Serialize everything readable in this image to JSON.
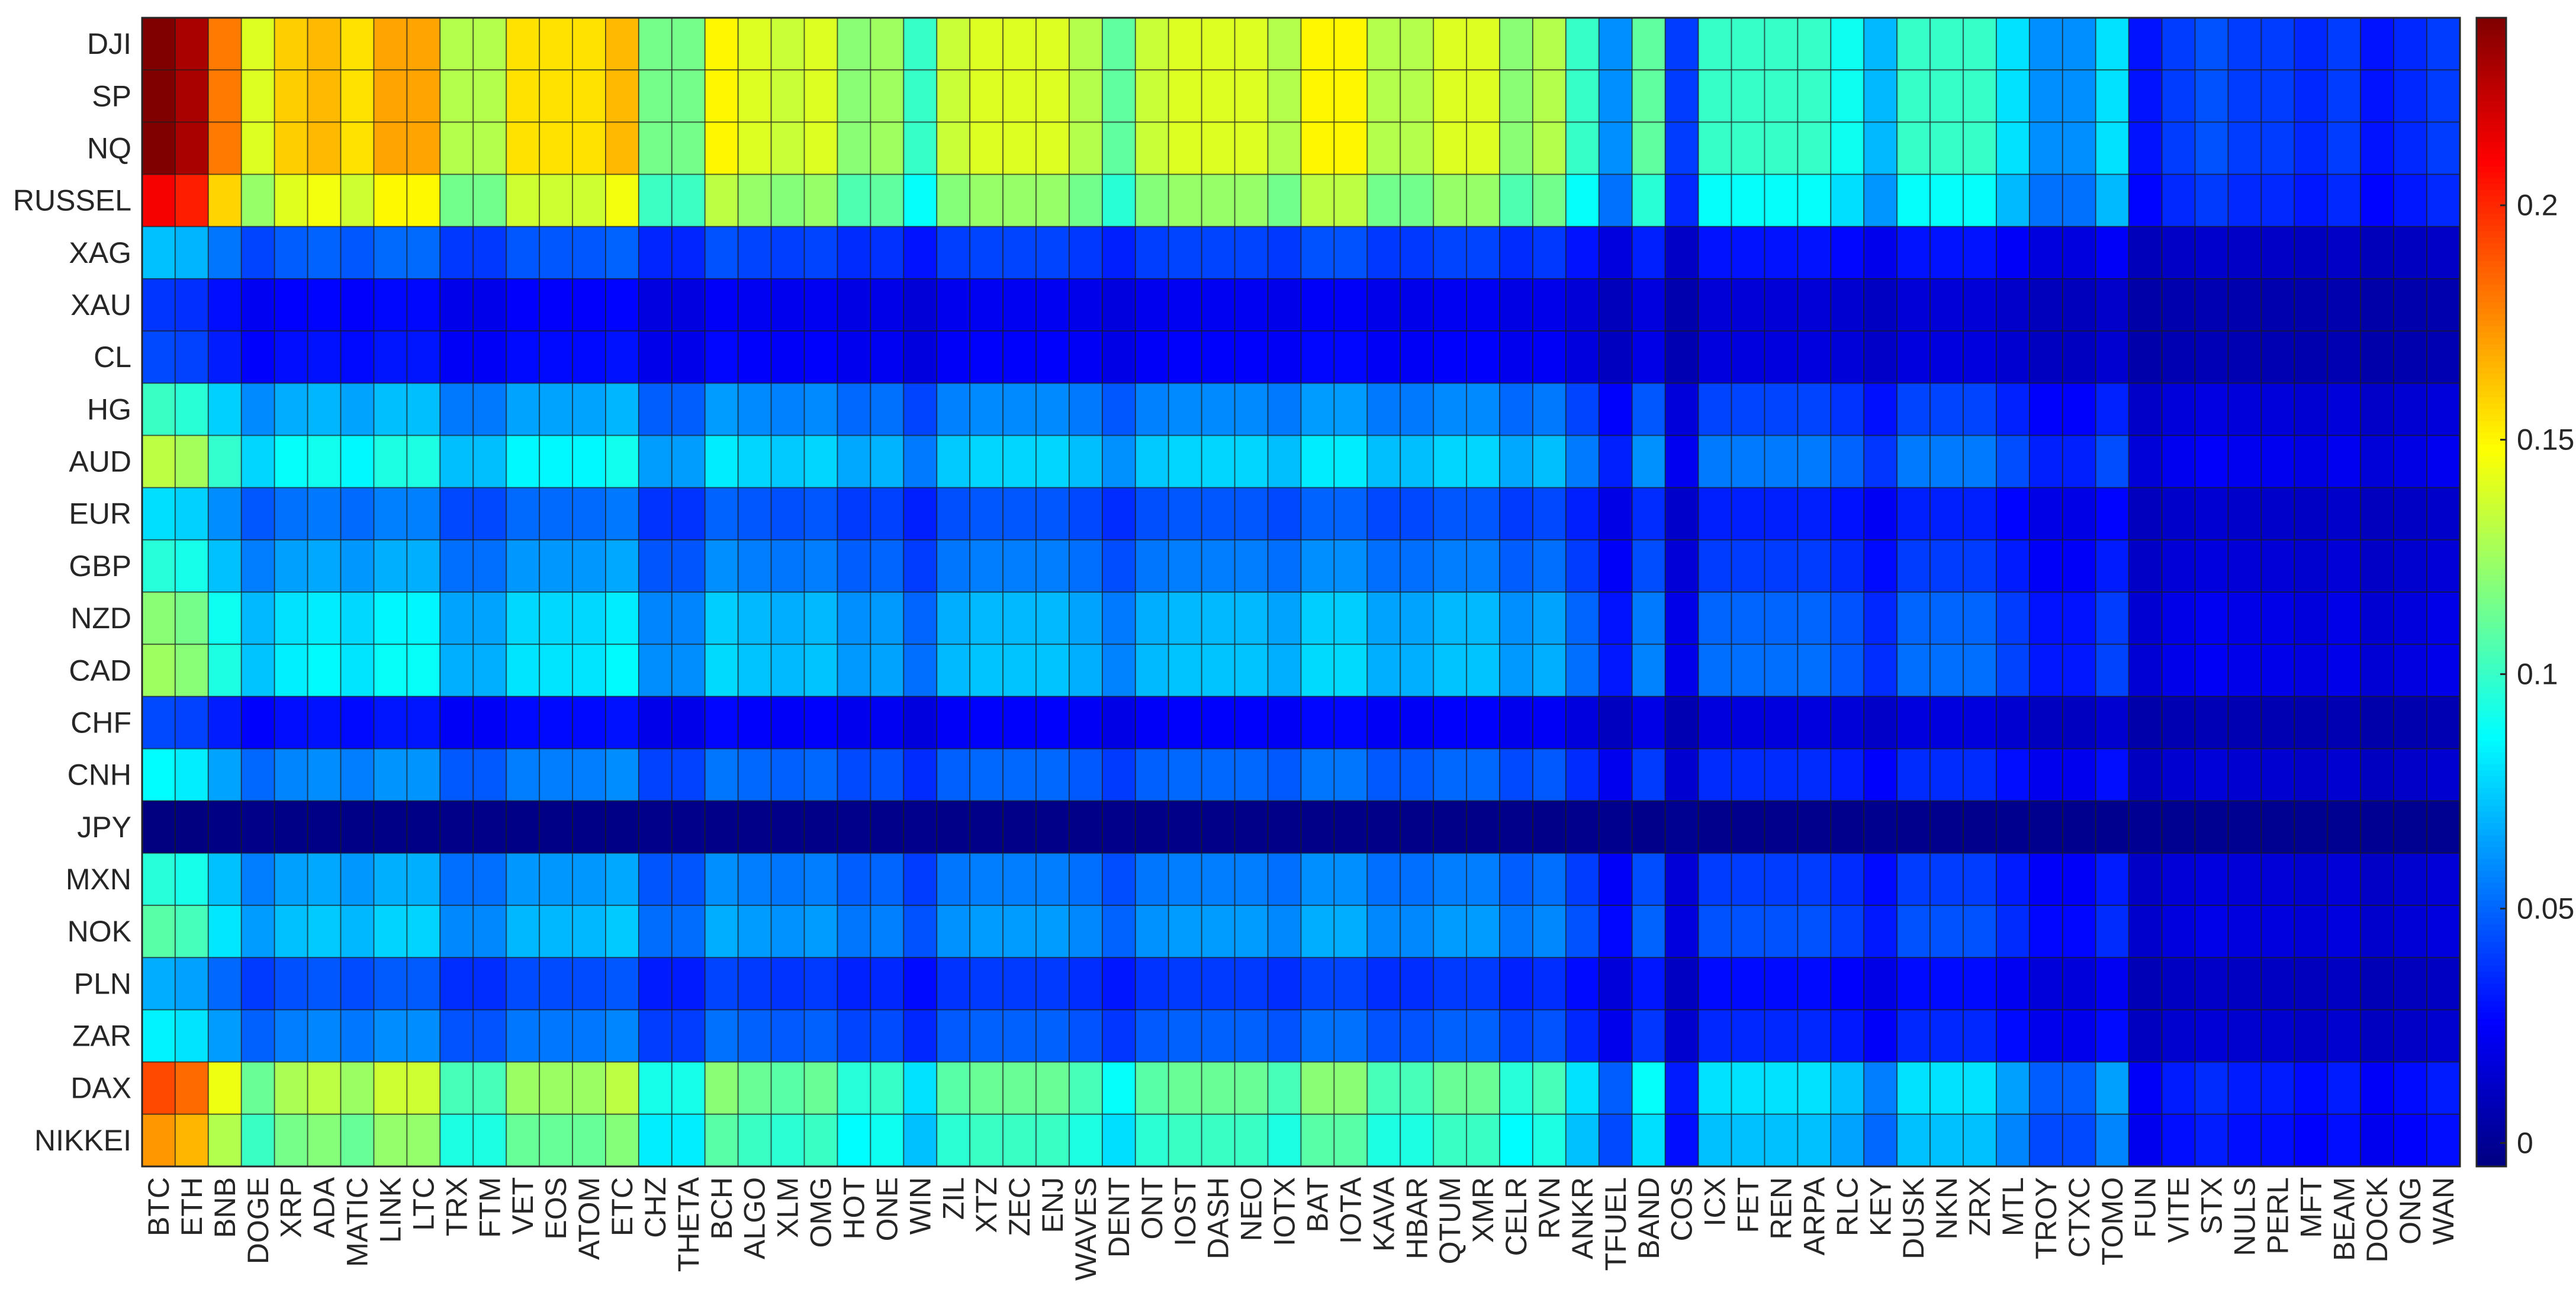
{
  "chart_data": {
    "type": "heatmap",
    "title": "",
    "xlabel": "",
    "ylabel": "",
    "colormap": "jet",
    "clim": [
      -0.005,
      0.24
    ],
    "colorbar": {
      "position": "right",
      "ticks": [
        0,
        0.05,
        0.1,
        0.15,
        0.2
      ],
      "tick_labels": [
        "0",
        "0.05",
        "0.1",
        "0.15",
        "0.2"
      ]
    },
    "rows": [
      "DJI",
      "SP",
      "NQ",
      "RUSSEL",
      "XAG",
      "XAU",
      "CL",
      "HG",
      "AUD",
      "EUR",
      "GBP",
      "NZD",
      "CAD",
      "CHF",
      "CNH",
      "JPY",
      "MXN",
      "NOK",
      "PLN",
      "ZAR",
      "DAX",
      "NIKKEI"
    ],
    "columns": [
      "BTC",
      "ETH",
      "BNB",
      "DOGE",
      "XRP",
      "ADA",
      "MATIC",
      "LINK",
      "LTC",
      "TRX",
      "FTM",
      "VET",
      "EOS",
      "ATOM",
      "ETC",
      "CHZ",
      "THETA",
      "BCH",
      "ALGO",
      "XLM",
      "OMG",
      "HOT",
      "ONE",
      "WIN",
      "ZIL",
      "XTZ",
      "ZEC",
      "ENJ",
      "WAVES",
      "DENT",
      "ONT",
      "IOST",
      "DASH",
      "NEO",
      "IOTX",
      "BAT",
      "IOTA",
      "KAVA",
      "HBAR",
      "QTUM",
      "XMR",
      "CELR",
      "RVN",
      "ANKR",
      "TFUEL",
      "BAND",
      "COS",
      "ICX",
      "FET",
      "REN",
      "ARPA",
      "RLC",
      "KEY",
      "DUSK",
      "NKN",
      "ZRX",
      "MTL",
      "TROY",
      "CTXC",
      "TOMO",
      "FUN",
      "VITE",
      "STX",
      "NULS",
      "PERL",
      "MFT",
      "BEAM",
      "DOCK",
      "ONG",
      "WAN"
    ],
    "row_strength": [
      1.0,
      1.0,
      1.0,
      0.88,
      0.3,
      0.16,
      0.18,
      0.42,
      0.55,
      0.33,
      0.4,
      0.5,
      0.52,
      0.18,
      0.36,
      -0.02,
      0.4,
      0.45,
      0.28,
      0.35,
      0.8,
      0.72
    ],
    "column_strength": [
      0.24,
      0.23,
      0.18,
      0.14,
      0.16,
      0.165,
      0.155,
      0.17,
      0.17,
      0.13,
      0.13,
      0.155,
      0.155,
      0.155,
      0.165,
      0.115,
      0.115,
      0.15,
      0.14,
      0.135,
      0.14,
      0.12,
      0.125,
      0.1,
      0.135,
      0.14,
      0.14,
      0.14,
      0.13,
      0.11,
      0.135,
      0.14,
      0.14,
      0.14,
      0.13,
      0.15,
      0.15,
      0.13,
      0.13,
      0.14,
      0.14,
      0.12,
      0.13,
      0.1,
      0.06,
      0.11,
      0.04,
      0.1,
      0.1,
      0.1,
      0.1,
      0.09,
      0.07,
      0.1,
      0.1,
      0.1,
      0.08,
      0.06,
      0.06,
      0.08,
      0.03,
      0.04,
      0.045,
      0.04,
      0.04,
      0.035,
      0.04,
      0.03,
      0.035,
      0.04
    ],
    "value_formula": "value[r][c] = row_strength[r] * column_strength[c]"
  }
}
